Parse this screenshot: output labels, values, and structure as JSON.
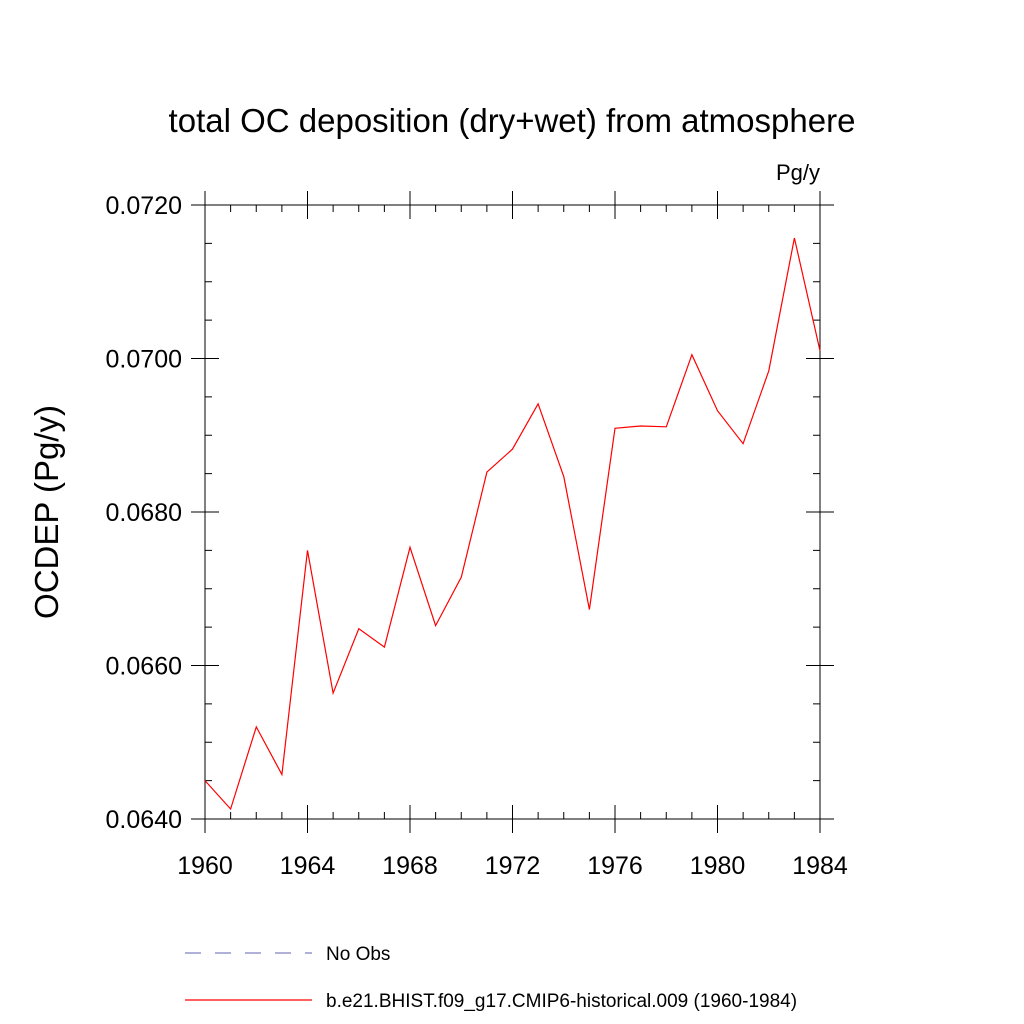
{
  "chart_data": {
    "type": "line",
    "title": "total OC deposition (dry+wet) from atmosphere",
    "units_label": "Pg/y",
    "ylabel": "OCDEP  (Pg/y)",
    "xlabel": "",
    "xlim": [
      1960,
      1984
    ],
    "ylim": [
      0.064,
      0.072
    ],
    "x_ticks": [
      1960,
      1964,
      1968,
      1972,
      1976,
      1980,
      1984
    ],
    "x_tick_labels": [
      "1960",
      "1964",
      "1968",
      "1972",
      "1976",
      "1980",
      "1984"
    ],
    "y_ticks": [
      0.064,
      0.066,
      0.068,
      0.07,
      0.072
    ],
    "y_tick_labels": [
      "0.0640",
      "0.0660",
      "0.0680",
      "0.0700",
      "0.0720"
    ],
    "grid": false,
    "legend_position": "bottom",
    "series": [
      {
        "name": "b.e21.BHIST.f09_g17.CMIP6-historical.009 (1960-1984)",
        "color": "#ff0000",
        "dash": "solid",
        "x": [
          1960,
          1961,
          1962,
          1963,
          1964,
          1965,
          1966,
          1967,
          1968,
          1969,
          1970,
          1971,
          1972,
          1973,
          1974,
          1975,
          1976,
          1977,
          1978,
          1979,
          1980,
          1981,
          1982,
          1983,
          1984
        ],
        "values": [
          0.0645,
          0.06413,
          0.0652,
          0.06458,
          0.0675,
          0.06564,
          0.06648,
          0.06624,
          0.06754,
          0.06652,
          0.06715,
          0.06852,
          0.06882,
          0.06941,
          0.06846,
          0.06673,
          0.06909,
          0.06912,
          0.06911,
          0.07005,
          0.06932,
          0.06889,
          0.06984,
          0.07157,
          0.0701
        ]
      }
    ],
    "legend": [
      {
        "label": "No Obs",
        "color": "#8080c0",
        "dash": "dashed"
      },
      {
        "label": "b.e21.BHIST.f09_g17.CMIP6-historical.009 (1960-1984)",
        "color": "#ff0000",
        "dash": "solid"
      }
    ]
  }
}
